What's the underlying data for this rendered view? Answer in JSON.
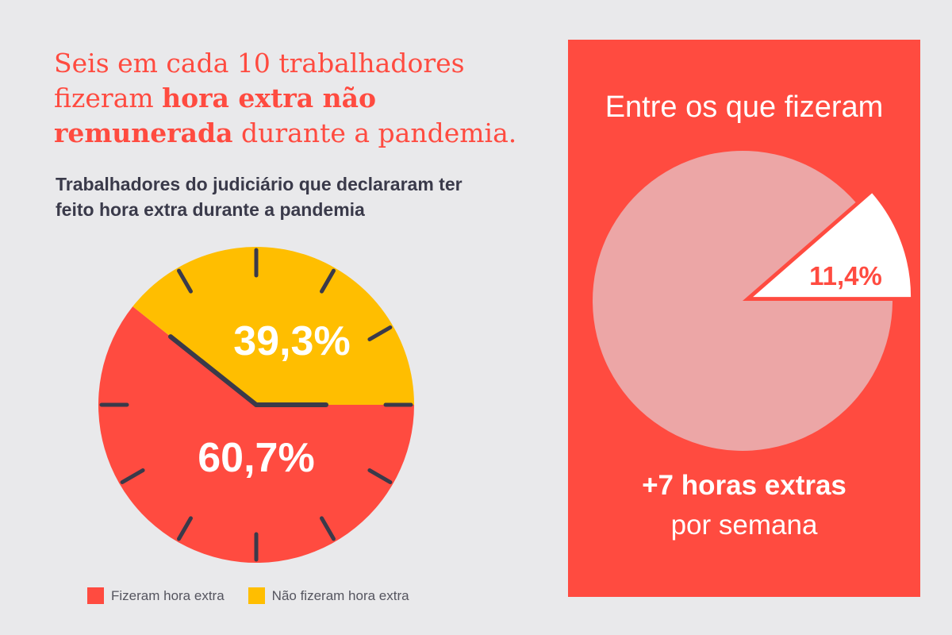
{
  "headline": {
    "part1": "Seis em cada 10 trabalhadores fizeram ",
    "bold": "hora extra não remunerada",
    "part2": " durante a pandemia."
  },
  "subtitle": "Trabalhadores do judiciário que declararam ter feito hora extra durante a pandemia",
  "chart_data": [
    {
      "type": "pie",
      "style": "clock",
      "categories": [
        "Fizeram hora extra",
        "Não fizeram hora extra"
      ],
      "values": [
        60.7,
        39.3
      ],
      "labels": [
        "60,7%",
        "39,3%"
      ],
      "colors": [
        "#ff4b40",
        "#ffbe00"
      ],
      "legend": "bottom"
    },
    {
      "type": "pie",
      "highlight_value": 11.4,
      "highlight_label": "11,4%",
      "colors": {
        "base": "#eca6a6",
        "highlight": "#ffffff"
      }
    }
  ],
  "legend": [
    {
      "label": "Fizeram hora extra",
      "color": "#ff4b40"
    },
    {
      "label": "Não fizeram hora extra",
      "color": "#ffbe00"
    }
  ],
  "panel": {
    "title": "Entre os que fizeram",
    "big": "+7 horas extras",
    "small": "por semana",
    "background": "#ff4b40"
  }
}
